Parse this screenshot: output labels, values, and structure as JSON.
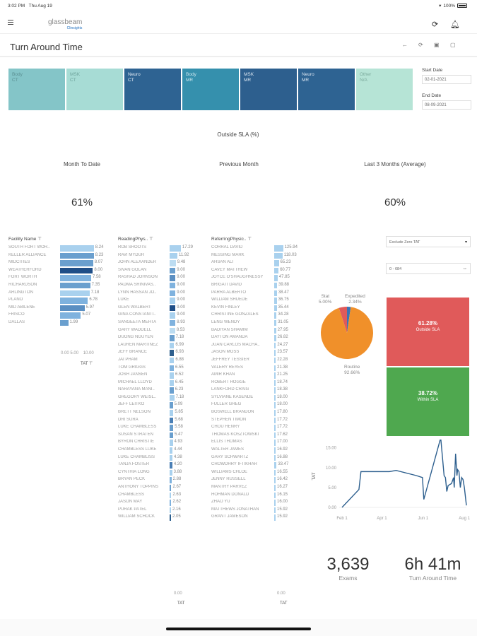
{
  "status_bar": {
    "time": "3:02 PM",
    "date": "Thu Aug 19",
    "battery": "100%"
  },
  "app": {
    "logo_main": "glassbeam",
    "logo_sub": "Clinsights",
    "icons": [
      "hamburger-icon",
      "refresh-alert-icon",
      "bell-icon"
    ]
  },
  "page": {
    "title": "Turn Around Time",
    "toolbar_icons": [
      "back-icon",
      "refresh-icon",
      "save-icon",
      "export-icon"
    ]
  },
  "modality_tiles": [
    {
      "line1": "Body",
      "line2": "CT",
      "bg": "#84c5c8",
      "fg": "#5a8f92"
    },
    {
      "line1": "MSK",
      "line2": "CT",
      "bg": "#a7dcd5",
      "fg": "#6ea39c"
    },
    {
      "line1": "Neuro",
      "line2": "CT",
      "bg": "#2e6392",
      "fg": "#e6eef6"
    },
    {
      "line1": "Body",
      "line2": "MR",
      "bg": "#3590ad",
      "fg": "#cde6ee"
    },
    {
      "line1": "MSK",
      "line2": "MR",
      "bg": "#2d5f8e",
      "fg": "#dce7f2"
    },
    {
      "line1": "Neuro",
      "line2": "MR",
      "bg": "#2e6392",
      "fg": "#dce7f2"
    },
    {
      "line1": "Other",
      "line2": "N/A",
      "bg": "#b6e4d6",
      "fg": "#7aa99b"
    }
  ],
  "dates": {
    "start_label": "Start Date",
    "start_value": "02-01-2021",
    "end_label": "End Date",
    "end_value": "08-09-2021"
  },
  "kpis": {
    "title": "Outside SLA (%)",
    "month_to_date_label": "Month To Date",
    "month_to_date_value": "61%",
    "previous_month_label": "Previous Month",
    "last3_label": "Last 3 Months (Average)",
    "last3_value": "60%"
  },
  "facility": {
    "header": "Facility Name",
    "axis_ticks": [
      "0.00",
      "5.00",
      "10.00"
    ],
    "axis_title": "TAT",
    "rows": [
      {
        "name": "SOUTH FORT WOR..",
        "value": "8.24",
        "color": "#a9d1ee"
      },
      {
        "name": "KELLER ALLIANCE",
        "value": "8.23",
        "color": "#6a9fce"
      },
      {
        "name": "MIDCITIES",
        "value": "8.07",
        "color": "#6a9fce"
      },
      {
        "name": "WEATHERFORD",
        "value": "8.00",
        "color": "#1f4e87"
      },
      {
        "name": "FORT WORTH",
        "value": "7.58",
        "color": "#7fb2de"
      },
      {
        "name": "RICHARDSON",
        "value": "7.35",
        "color": "#6a9fce"
      },
      {
        "name": "ARLINGTON",
        "value": "7.18",
        "color": "#a9d1ee"
      },
      {
        "name": "PLANO",
        "value": "6.78",
        "color": "#7fb2de"
      },
      {
        "name": "MID ABILENE",
        "value": "5.97",
        "color": "#5b8fc2"
      },
      {
        "name": "FRISCO",
        "value": "5.07",
        "color": "#7fb2de"
      },
      {
        "name": "DALLAS",
        "value": "1.99",
        "color": "#6a9fce"
      }
    ]
  },
  "reading": {
    "header": "ReadingPhys..",
    "axis_tick": "0.00",
    "axis_title": "TAT",
    "rows": [
      {
        "name": "ROB SHOOTS",
        "value": "17.29",
        "color": "#a9d1ee"
      },
      {
        "name": "RAVI MYDUR",
        "value": "11.92",
        "color": "#a9d1ee"
      },
      {
        "name": "JOHN ALEXANDER",
        "value": "9.48",
        "color": "#bcdcf1"
      },
      {
        "name": "SIVAN GOLAN",
        "value": "9.00",
        "color": "#6a9fce"
      },
      {
        "name": "RASHAD JOHNSON",
        "value": "9.00",
        "color": "#5b8fc2"
      },
      {
        "name": "PADMA SRINIVAS..",
        "value": "9.00",
        "color": "#7fb2de"
      },
      {
        "name": "LYNN HASSAN JO..",
        "value": "9.00",
        "color": "#7fb2de"
      },
      {
        "name": "LUKE",
        "value": "9.00",
        "color": "#a9d1ee"
      },
      {
        "name": "GLEN WALBERT",
        "value": "9.00",
        "color": "#1f4e87"
      },
      {
        "name": "GINA CONSTANTI..",
        "value": "9.00",
        "color": "#a9d1ee"
      },
      {
        "name": "SANGEETA MEHTA",
        "value": "8.93",
        "color": "#7fb2de"
      },
      {
        "name": "GARY WADDELL",
        "value": "8.53",
        "color": "#bcdcf1"
      },
      {
        "name": "DUONG NGUYEN",
        "value": "7.18",
        "color": "#6a9fce"
      },
      {
        "name": "LAUREN MARTINEZ",
        "value": "6.99",
        "color": "#a9d1ee"
      },
      {
        "name": "JEFF BRANCE",
        "value": "6.93",
        "color": "#2d5f8e"
      },
      {
        "name": "JAI PHAM",
        "value": "6.88",
        "color": "#a9d1ee"
      },
      {
        "name": "TOM GRIGGS",
        "value": "6.55",
        "color": "#7fb2de"
      },
      {
        "name": "JOSH JANSEN",
        "value": "6.52",
        "color": "#a9d1ee"
      },
      {
        "name": "MICHAEL LLOYD",
        "value": "6.45",
        "color": "#a9d1ee"
      },
      {
        "name": "NARAYANA MANI..",
        "value": "6.23",
        "color": "#6a9fce"
      },
      {
        "name": "GREGORY WEISL..",
        "value": "7.18",
        "color": "#a9d1ee"
      },
      {
        "name": "JEFF LEITKO",
        "value": "5.09",
        "color": "#6a9fce"
      },
      {
        "name": "BRETT NELSON",
        "value": "5.85",
        "color": "#a9d1ee"
      },
      {
        "name": "DRI SURA",
        "value": "5.68",
        "color": "#4a7fb5"
      },
      {
        "name": "LUKE CHAMBLESS",
        "value": "5.58",
        "color": "#6a9fce"
      },
      {
        "name": "SUSAN STRATEN",
        "value": "5.47",
        "color": "#6a9fce"
      },
      {
        "name": "BYRON CHRISTIE",
        "value": "4.93",
        "color": "#a9d1ee"
      },
      {
        "name": "CHAMBLESS LUKE",
        "value": "4.44",
        "color": "#a9d1ee"
      },
      {
        "name": "LUKE CHAMBLISS",
        "value": "4.38",
        "color": "#a9d1ee"
      },
      {
        "name": "TANJA FOSTER",
        "value": "4.20",
        "color": "#4a7fb5"
      },
      {
        "name": "CYNTHIA LONG",
        "value": "3.88",
        "color": "#a9d1ee"
      },
      {
        "name": "BRYAN PECK",
        "value": "2.88",
        "color": "#7fb2de"
      },
      {
        "name": "ANTHONY TOPPINS",
        "value": "2.67",
        "color": "#6a9fce"
      },
      {
        "name": "CHAMBLESS",
        "value": "2.63",
        "color": "#a9d1ee"
      },
      {
        "name": "JASON MAY",
        "value": "2.62",
        "color": "#7fb2de"
      },
      {
        "name": "PURAK PATEL",
        "value": "2.16",
        "color": "#a9d1ee"
      },
      {
        "name": "WILLIAM SCHOCK",
        "value": "2.05",
        "color": "#2d5f8e"
      }
    ]
  },
  "referring": {
    "header": "ReferringPhysic..",
    "axis_tick": "0.00",
    "axis_title": "TAT",
    "rows": [
      {
        "name": "CORRAL DAVID",
        "value": "125.94"
      },
      {
        "name": "MESSING MARK",
        "value": "118.03"
      },
      {
        "name": "AHSAN ALI",
        "value": "65.23"
      },
      {
        "name": "CAVEY MATTHEW",
        "value": "60.77"
      },
      {
        "name": "JOYCE O'SHAUGHNESSY",
        "value": "47.85"
      },
      {
        "name": "BRIGATI DAVID",
        "value": "39.88"
      },
      {
        "name": "PARRA ALBERTO",
        "value": "38.47"
      },
      {
        "name": "WILLIAM SHUEDE",
        "value": "36.75"
      },
      {
        "name": "KEVIN FINLEY",
        "value": "35.44"
      },
      {
        "name": "CHRISTINE GONZALES",
        "value": "34.28"
      },
      {
        "name": "LENG WENDY",
        "value": "31.05"
      },
      {
        "name": "BADIYAN SHAMIM",
        "value": "27.95"
      },
      {
        "name": "DAYTON AMANDA",
        "value": "26.82"
      },
      {
        "name": "JUAN CARLOS MACHA..",
        "value": "24.27"
      },
      {
        "name": "JASON MOSS",
        "value": "23.57"
      },
      {
        "name": "JEFFREY TESSIER",
        "value": "22.28"
      },
      {
        "name": "VALERY REYES",
        "value": "21.38"
      },
      {
        "name": "AMIR KHAN",
        "value": "21.25"
      },
      {
        "name": "ROBERT HOGGE",
        "value": "18.74"
      },
      {
        "name": "LANKFORD CRAIG",
        "value": "18.38"
      },
      {
        "name": "SYLVIANE KASENDE",
        "value": "18.00"
      },
      {
        "name": "FULLER GREG",
        "value": "18.00"
      },
      {
        "name": "BOSWELL BRANDON",
        "value": "17.80"
      },
      {
        "name": "STEPHEN TIMON",
        "value": "17.72"
      },
      {
        "name": "CHOU HENRY",
        "value": "17.72"
      },
      {
        "name": "THOMAS KOSZTOWSKI",
        "value": "17.62"
      },
      {
        "name": "ELLIS THOMAS",
        "value": "17.00"
      },
      {
        "name": "WALTER JAMES",
        "value": "16.92"
      },
      {
        "name": "GARY SCHWARTZ",
        "value": "16.88"
      },
      {
        "name": "CHOWDHRY IFTIKHAR",
        "value": "33.47"
      },
      {
        "name": "WILLIAMS CHLOE",
        "value": "16.55"
      },
      {
        "name": "JENNY RUSSELL",
        "value": "16.42"
      },
      {
        "name": "MANTRY PARVEZ",
        "value": "16.27"
      },
      {
        "name": "HOHMAN DONALD",
        "value": "16.15"
      },
      {
        "name": "ZHAO YU",
        "value": "16.00"
      },
      {
        "name": "MATTHEWS JONATHAN",
        "value": "15.92"
      },
      {
        "name": "GRANT JAMESON",
        "value": "15.92"
      }
    ]
  },
  "filters": {
    "zero_tat": "Exclude Zero TAT",
    "range": "0 - 684",
    "range_icon": "slider-icon"
  },
  "priority_pie": {
    "slices": [
      {
        "label": "Routine",
        "pct_label": "92.66%",
        "value": 92.66,
        "color": "#f0902a"
      },
      {
        "label": "Stat",
        "pct_label": "5.00%",
        "value": 5.0,
        "color": "#e05a5a"
      },
      {
        "label": "Expedited",
        "pct_label": "2.34%",
        "value": 2.34,
        "color": "#3a74b5"
      }
    ]
  },
  "sla_split": {
    "outside": {
      "pct": "61.28%",
      "label": "Outside SLA",
      "value": 61.28,
      "color": "#e05a5a"
    },
    "within": {
      "pct": "38.72%",
      "label": "Within SLA",
      "value": 38.72,
      "color": "#4fa84f"
    }
  },
  "chart_data": {
    "type": "line",
    "title": "",
    "xlabel": "",
    "ylabel": "TAT",
    "ylim": [
      0,
      16
    ],
    "x_ticks": [
      "Feb 1",
      "Apr 1",
      "Jun 1",
      "Aug 1"
    ],
    "y_ticks": [
      "0.00",
      "5.00",
      "10.00",
      "15.00"
    ],
    "x_range_days": [
      0,
      184
    ],
    "series": [
      {
        "name": "TAT",
        "color": "#2d5f8e",
        "points": [
          [
            0,
            0
          ],
          [
            25,
            4.5
          ],
          [
            28,
            9
          ],
          [
            70,
            9
          ],
          [
            80,
            9.3
          ],
          [
            110,
            8
          ],
          [
            119,
            7.5
          ],
          [
            121,
            2
          ],
          [
            146,
            17.5
          ],
          [
            151,
            8
          ],
          [
            153,
            7.5
          ],
          [
            155,
            4
          ],
          [
            157,
            5.5
          ],
          [
            162,
            6
          ],
          [
            165,
            7.5
          ],
          [
            166,
            5
          ],
          [
            168,
            13.5
          ],
          [
            170,
            8
          ],
          [
            171,
            9.5
          ],
          [
            173,
            9
          ],
          [
            175,
            5
          ],
          [
            177,
            7.5
          ],
          [
            179,
            7
          ],
          [
            181,
            5
          ],
          [
            183,
            2
          ],
          [
            184,
            0.5
          ]
        ]
      }
    ]
  },
  "totals": {
    "exams_value": "3,639",
    "exams_label": "Exams",
    "tat_value": "6h 41m",
    "tat_label": "Turn Around Time"
  }
}
